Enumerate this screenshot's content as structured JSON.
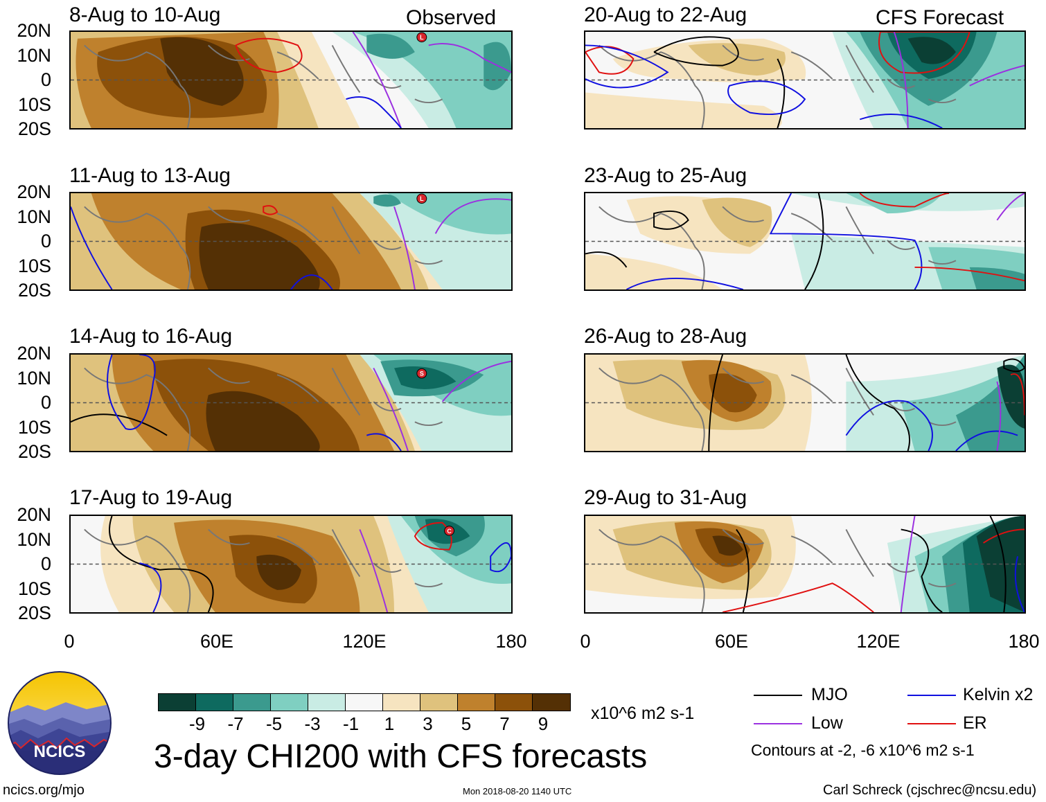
{
  "header": {
    "observed_tag": "Observed",
    "forecast_tag": "CFS Forecast"
  },
  "panels": [
    {
      "title": "8-Aug to 10-Aug",
      "storm_marker": "L"
    },
    {
      "title": "11-Aug to 13-Aug",
      "storm_marker": "L"
    },
    {
      "title": "14-Aug to 16-Aug",
      "storm_marker": "S"
    },
    {
      "title": "17-Aug to 19-Aug",
      "storm_marker": "C"
    },
    {
      "title": "20-Aug to 22-Aug"
    },
    {
      "title": "23-Aug to 25-Aug"
    },
    {
      "title": "26-Aug to 28-Aug"
    },
    {
      "title": "29-Aug to 31-Aug"
    }
  ],
  "axes": {
    "lat_ticks": [
      "20N",
      "10N",
      "0",
      "10S",
      "20S"
    ],
    "lon_ticks": [
      "0",
      "60E",
      "120E",
      "180"
    ]
  },
  "colorbar": {
    "colors": [
      "#0b3f34",
      "#0e6a5f",
      "#3b9a8e",
      "#7fcfc1",
      "#c9ece4",
      "#f7f7f7",
      "#f6e4c0",
      "#dfc27d",
      "#bf812d",
      "#8c510a",
      "#543005"
    ],
    "tick_labels": [
      "-9",
      "-7",
      "-5",
      "-3",
      "-1",
      "1",
      "3",
      "5",
      "7",
      "9"
    ],
    "units": "x10^6 m2 s-1"
  },
  "title": "3-day CHI200 with CFS forecasts",
  "legend": {
    "items": [
      {
        "label": "MJO",
        "color": "#000000"
      },
      {
        "label": "Kelvin x2",
        "color": "#1010e0"
      },
      {
        "label": "Low",
        "color": "#9b30e0"
      },
      {
        "label": "ER",
        "color": "#e01010"
      }
    ],
    "contour_note": "Contours at -2, -6 x10^6 m2 s-1"
  },
  "footer": {
    "logo_text": "NCICS",
    "url": "ncics.org/mjo",
    "timestamp": "Mon 2018-08-20 1140 UTC",
    "author": "Carl Schreck (cjschrec@ncsu.edu)"
  }
}
